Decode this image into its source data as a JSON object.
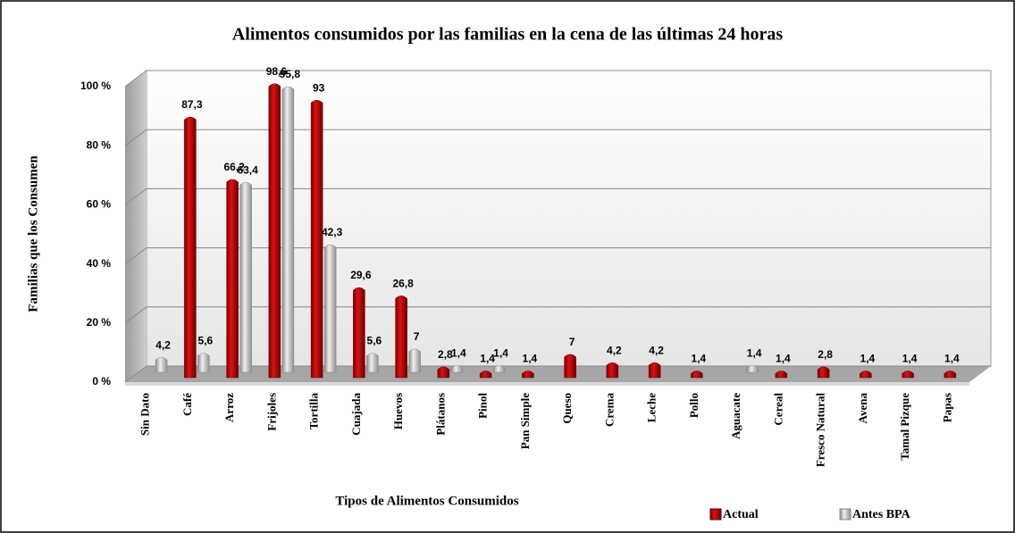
{
  "chart_data": {
    "type": "bar3d",
    "title": "Alimentos consumidos por las familias en la cena de las últimas 24 horas",
    "ylabel": "Familias que los Consumen",
    "xlabel": "Tipos de Alimentos Consumidos",
    "categories": [
      "Sin Dato",
      "Café",
      "Arroz",
      "Frijoles",
      "Tortilla",
      "Cuajada",
      "Huevos",
      "Plátanos",
      "Pinol",
      "Pan Simple",
      "Queso",
      "Crema",
      "Leche",
      "Pollo",
      "Aguacate",
      "Cereal",
      "Fresco Natural",
      "Avena",
      "Tamal Pizque",
      "Papas"
    ],
    "series": [
      {
        "name": "Actual",
        "color": "#c00000",
        "values": [
          null,
          87.3,
          66.2,
          98.6,
          93,
          29.6,
          26.8,
          2.8,
          1.4,
          1.4,
          7,
          4.2,
          4.2,
          1.4,
          null,
          1.4,
          2.8,
          1.4,
          1.4,
          1.4
        ],
        "value_labels": [
          null,
          "87,3",
          "66,2",
          "98,6",
          "93",
          "29,6",
          "26,8",
          "2,8",
          "1,4",
          "1,4",
          "7",
          "4,2",
          "4,2",
          "1,4",
          null,
          "1,4",
          "2,8",
          "1,4",
          "1,4",
          "1,4"
        ]
      },
      {
        "name": "Antes BPA",
        "color": "#bfbfbf",
        "values": [
          4.2,
          5.6,
          63.4,
          95.8,
          42.3,
          5.6,
          7,
          1.4,
          1.4,
          null,
          null,
          null,
          null,
          null,
          1.4,
          null,
          null,
          null,
          null,
          null
        ],
        "value_labels": [
          "4,2",
          "5,6",
          "63,4",
          "95,8",
          "42,3",
          "5,6",
          "7",
          "1,4",
          "1,4",
          null,
          null,
          null,
          null,
          null,
          "1,4",
          null,
          null,
          null,
          null,
          null
        ]
      }
    ],
    "ylim": [
      0,
      100
    ],
    "yticks": [
      {
        "value": 0,
        "label": "0 %"
      },
      {
        "value": 20,
        "label": "20 %"
      },
      {
        "value": 40,
        "label": "40 %"
      },
      {
        "value": 60,
        "label": "60 %"
      },
      {
        "value": 80,
        "label": "80 %"
      },
      {
        "value": 100,
        "label": "100 %"
      }
    ],
    "grid": true
  }
}
